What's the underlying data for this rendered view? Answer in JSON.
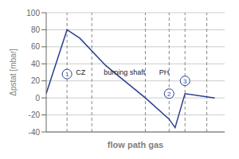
{
  "chart_data": {
    "type": "line",
    "xlabel": "flow path gas",
    "ylabel": "Δpstat [mbar]",
    "x": [
      0.0,
      1.05,
      1.7,
      3.0,
      5.0,
      6.2,
      6.5,
      7.0,
      8.5
    ],
    "values": [
      5,
      80,
      70,
      38,
      0,
      -25,
      -35,
      5,
      0
    ],
    "color": "#2a3f8f",
    "xlim": [
      0,
      9
    ],
    "ylim": [
      -40,
      100
    ],
    "yticks": [
      -40,
      -20,
      0,
      20,
      40,
      60,
      80,
      100
    ],
    "grid": true,
    "tick_labels": "y",
    "vlines": [
      1.05,
      2.3,
      5.0,
      6.2,
      7.0,
      8.1
    ],
    "annotations": [
      {
        "text": "CZ",
        "x": 1.5,
        "y": 30
      },
      {
        "text": "burning shaft",
        "x": 2.9,
        "y": 30
      },
      {
        "text": "PH",
        "x": 5.7,
        "y": 30
      }
    ],
    "circle_labels": [
      {
        "text": "1",
        "x": 1.05,
        "y": 28
      },
      {
        "text": "2",
        "x": 6.2,
        "y": 5
      },
      {
        "text": "3",
        "x": 7.0,
        "y": 20
      }
    ]
  }
}
